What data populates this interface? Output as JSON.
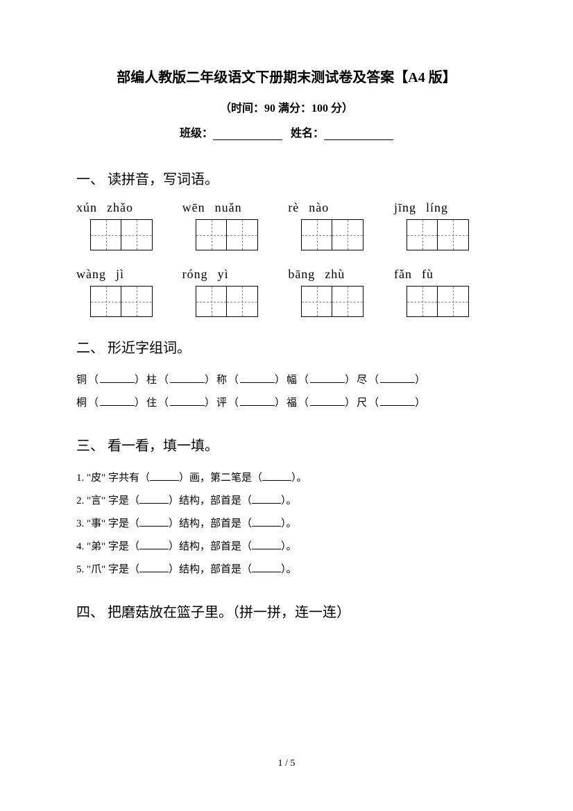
{
  "title": "部编人教版二年级语文下册期末测试卷及答案【A4 版】",
  "subtitle": "（时间：90    满分：100 分）",
  "info_class": "班级：",
  "info_name": "姓名：",
  "section1": {
    "heading": "一、 读拼音，写词语。",
    "row1": [
      {
        "p1": "xún",
        "p2": "zhǎo"
      },
      {
        "p1": "wēn",
        "p2": "nuǎn"
      },
      {
        "p1": "rè",
        "p2": "nào"
      },
      {
        "p1": "jīng",
        "p2": "líng"
      }
    ],
    "row2": [
      {
        "p1": "wàng",
        "p2": "jì"
      },
      {
        "p1": "róng",
        "p2": "yì"
      },
      {
        "p1": "bāng",
        "p2": "zhù"
      },
      {
        "p1": "fǎn",
        "p2": "fù"
      }
    ]
  },
  "section2": {
    "heading": "二、 形近字组词。",
    "line1": [
      "铜（",
      "）柱（",
      "）称（",
      "）幅（",
      "）尽（",
      "）"
    ],
    "line2": [
      "桐（",
      "）住（",
      "）评（",
      "）福（",
      "）尺（",
      "）"
    ]
  },
  "section3": {
    "heading": "三、 看一看，填一填。",
    "q1_a": "1.  \"皮\" 字共有（",
    "q1_b": "）画，第二笔是（",
    "q1_c": "）。",
    "q2_a": "2.  \"言\" 字是（",
    "q2_b": "）结构，部首是（",
    "q2_c": "）。",
    "q3_a": "3.  \"事\" 字是（",
    "q3_b": "）结构，部首是（",
    "q3_c": "）。",
    "q4_a": "4.  \"弟\" 字是（",
    "q4_b": "）结构，部首是（",
    "q4_c": "）。",
    "q5_a": "5.  \"爪\" 字是（",
    "q5_b": "）结构，部首是（",
    "q5_c": "）。"
  },
  "section4": {
    "heading": "四、 把磨菇放在篮子里。（拼一拼，连一连）"
  },
  "page_number": "1  /  5"
}
